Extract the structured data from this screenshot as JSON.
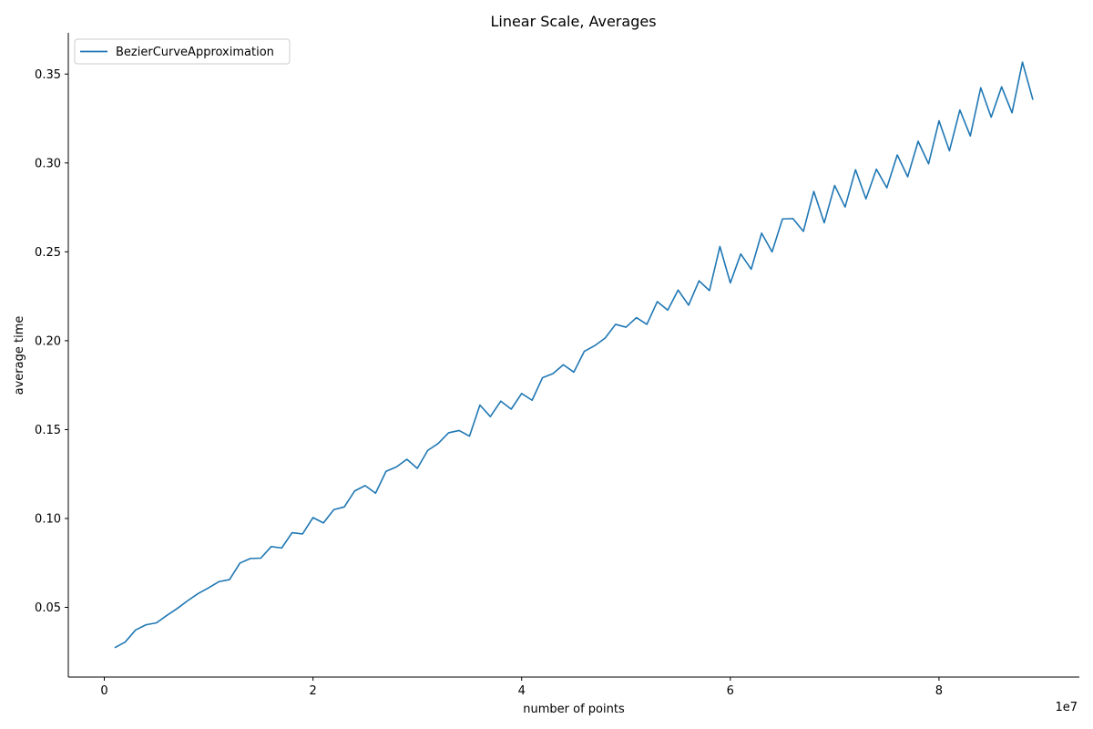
{
  "chart_data": {
    "type": "line",
    "title": "Linear Scale, Averages",
    "xlabel": "number of points",
    "ylabel": "average time",
    "x_offset_label": "1e7",
    "xlim": [
      -3450000,
      93450000
    ],
    "ylim": [
      0.0108,
      0.3732
    ],
    "xticks": [
      0,
      20000000,
      40000000,
      60000000,
      80000000
    ],
    "xtick_labels": [
      "0",
      "2",
      "4",
      "6",
      "8"
    ],
    "yticks": [
      0.05,
      0.1,
      0.15,
      0.2,
      0.25,
      0.3,
      0.35
    ],
    "ytick_labels": [
      "0.05",
      "0.10",
      "0.15",
      "0.20",
      "0.25",
      "0.30",
      "0.35"
    ],
    "grid": false,
    "legend_position": "top-left",
    "series": [
      {
        "name": "BezierCurveApproximation",
        "color": "#1f77b4",
        "x": [
          1000000,
          2000000,
          3000000,
          4000000,
          5000000,
          6000000,
          7000000,
          8000000,
          9000000,
          10000000,
          11000000,
          12000000,
          13000000,
          14000000,
          15000000,
          16000000,
          17000000,
          18000000,
          19000000,
          20000000,
          21000000,
          22000000,
          23000000,
          24000000,
          25000000,
          26000000,
          27000000,
          28000000,
          29000000,
          30000000,
          31000000,
          32000000,
          33000000,
          34000000,
          35000000,
          36000000,
          37000000,
          38000000,
          39000000,
          40000000,
          41000000,
          42000000,
          43000000,
          44000000,
          45000000,
          46000000,
          47000000,
          48000000,
          49000000,
          50000000,
          51000000,
          52000000,
          53000000,
          54000000,
          55000000,
          56000000,
          57000000,
          58000000,
          59000000,
          60000000,
          61000000,
          62000000,
          63000000,
          64000000,
          65000000,
          66000000,
          67000000,
          68000000,
          69000000,
          70000000,
          71000000,
          72000000,
          73000000,
          74000000,
          75000000,
          76000000,
          77000000,
          78000000,
          79000000,
          80000000,
          81000000,
          82000000,
          83000000,
          84000000,
          85000000,
          86000000,
          87000000,
          88000000,
          89000000
        ],
        "values": [
          0.0273,
          0.0305,
          0.0373,
          0.0402,
          0.0413,
          0.0455,
          0.0494,
          0.0538,
          0.0578,
          0.061,
          0.0645,
          0.0656,
          0.0749,
          0.0775,
          0.0777,
          0.0842,
          0.0834,
          0.092,
          0.0913,
          0.1005,
          0.0975,
          0.105,
          0.1065,
          0.1155,
          0.1185,
          0.1142,
          0.1265,
          0.129,
          0.1333,
          0.1282,
          0.1383,
          0.1422,
          0.1482,
          0.1495,
          0.1463,
          0.1638,
          0.1573,
          0.166,
          0.1615,
          0.1703,
          0.1665,
          0.1792,
          0.1815,
          0.1865,
          0.1823,
          0.194,
          0.1972,
          0.2015,
          0.2092,
          0.2076,
          0.213,
          0.2092,
          0.222,
          0.2172,
          0.2285,
          0.22,
          0.2337,
          0.2282,
          0.253,
          0.2325,
          0.2488,
          0.2402,
          0.2605,
          0.25,
          0.2685,
          0.2687,
          0.2615,
          0.284,
          0.2663,
          0.2873,
          0.2752,
          0.2962,
          0.2798,
          0.2965,
          0.286,
          0.3045,
          0.2922,
          0.3122,
          0.2995,
          0.3237,
          0.3068,
          0.3298,
          0.3152,
          0.3423,
          0.3257,
          0.3428,
          0.3282,
          0.3567,
          0.3355
        ]
      }
    ]
  }
}
